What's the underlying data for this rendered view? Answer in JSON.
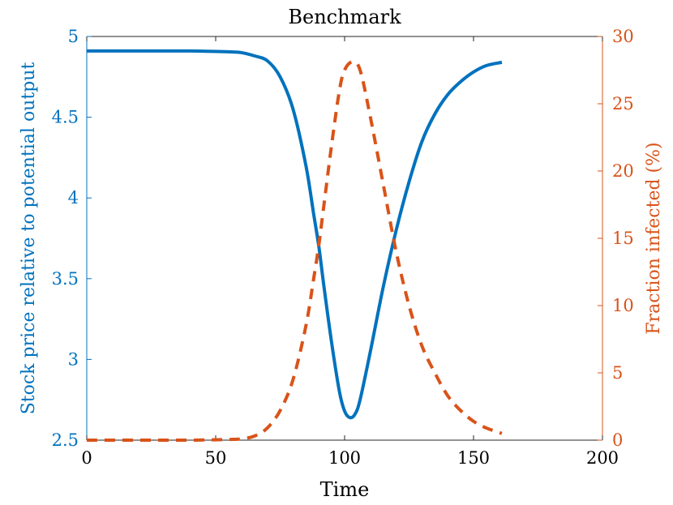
{
  "chart_data": {
    "type": "line",
    "title": "Benchmark",
    "xlabel": "Time",
    "ylabel_left": "Stock price relative to potential output",
    "ylabel_right": "Fraction infected (%)",
    "xlim": [
      0,
      200
    ],
    "ylim_left": [
      2.5,
      5
    ],
    "ylim_right": [
      0,
      30
    ],
    "x_ticks": [
      "0",
      "50",
      "100",
      "150",
      "200"
    ],
    "y_left_ticks": [
      "2.5",
      "3",
      "3.5",
      "4",
      "4.5",
      "5"
    ],
    "y_right_ticks": [
      "0",
      "5",
      "10",
      "15",
      "20",
      "25",
      "30"
    ],
    "grid": false,
    "colors": {
      "left": "#0072BD",
      "right": "#D95319",
      "axes": "#262626"
    },
    "series": [
      {
        "axis": "left",
        "style": "solid",
        "color": "#0072BD",
        "x": [
          0,
          20,
          40,
          55,
          60,
          65,
          70,
          75,
          80,
          85,
          88,
          90,
          92,
          95,
          98,
          100,
          102,
          104,
          106,
          110,
          115,
          120,
          125,
          130,
          135,
          140,
          145,
          150,
          155,
          161
        ],
        "y": [
          4.91,
          4.91,
          4.91,
          4.905,
          4.9,
          4.88,
          4.85,
          4.75,
          4.55,
          4.2,
          3.9,
          3.7,
          3.45,
          3.1,
          2.8,
          2.68,
          2.64,
          2.66,
          2.75,
          3.05,
          3.45,
          3.8,
          4.1,
          4.35,
          4.52,
          4.64,
          4.72,
          4.78,
          4.82,
          4.84
        ]
      },
      {
        "axis": "right",
        "style": "dashed",
        "color": "#D95319",
        "x": [
          0,
          20,
          40,
          55,
          60,
          65,
          70,
          75,
          80,
          85,
          88,
          90,
          92,
          95,
          98,
          100,
          103,
          106,
          110,
          115,
          120,
          125,
          130,
          135,
          140,
          145,
          150,
          155,
          161
        ],
        "y": [
          0,
          0,
          0,
          0.05,
          0.1,
          0.3,
          0.9,
          2.2,
          4.5,
          8.5,
          12,
          14.5,
          17.5,
          22,
          26,
          27.5,
          28.1,
          27.5,
          24,
          19,
          14,
          10,
          7,
          5,
          3.3,
          2.2,
          1.4,
          0.9,
          0.5
        ]
      }
    ]
  }
}
